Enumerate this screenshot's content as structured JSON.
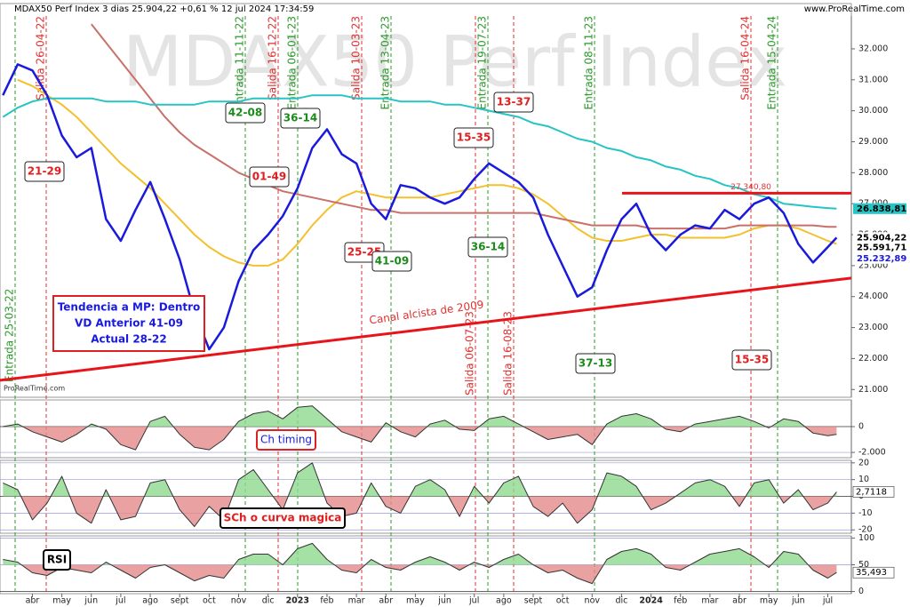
{
  "header": {
    "title": "MDAX50 Perf Index 3 dias 25.904,22 +0,61 % 12 jul 2024 17:34:59",
    "site": "www.ProRealTime.com",
    "watermark": "MDAX50 Perf Index",
    "credit": "ProRealTime.com"
  },
  "chart_data": [
    {
      "type": "line",
      "x": [
        -1,
        -0.5,
        0,
        0.5,
        1,
        1.5,
        2,
        2.5,
        3,
        3.5,
        4,
        4.5,
        5,
        5.5,
        6,
        6.5,
        7,
        7.5,
        8,
        8.5,
        9,
        9.5,
        10,
        10.5,
        11,
        11.5,
        12,
        12.5,
        13,
        13.5,
        14,
        14.5,
        15,
        15.5,
        16,
        16.5,
        17,
        17.5,
        18,
        18.5,
        19,
        19.5,
        20,
        20.5,
        21,
        21.5,
        22,
        22.5,
        23,
        23.5,
        24,
        24.5,
        25,
        25.5,
        26,
        26.5,
        27,
        27.3
      ],
      "xlim": [
        -1.1,
        27.8
      ],
      "ylim": [
        20750,
        33060
      ],
      "yticks": [
        {
          "value": 21000,
          "label": "21.000"
        },
        {
          "value": 22000,
          "label": "22.000"
        },
        {
          "value": 23000,
          "label": "23.000"
        },
        {
          "value": 24000,
          "label": "24.000"
        },
        {
          "value": 25000,
          "label": "25.000"
        },
        {
          "value": 26000,
          "label": "26.000"
        },
        {
          "value": 27000,
          "label": "27.000"
        },
        {
          "value": 28000,
          "label": "28.000"
        },
        {
          "value": 29000,
          "label": "29.000"
        },
        {
          "value": 30000,
          "label": "30.000"
        },
        {
          "value": 31000,
          "label": "31.000"
        },
        {
          "value": 32000,
          "label": "32.000"
        }
      ],
      "series": [
        {
          "color": "#f2c12e",
          "values": [
            null,
            31000,
            30800,
            30500,
            30200,
            29800,
            29300,
            28800,
            28300,
            27900,
            27500,
            27000,
            26500,
            26000,
            25600,
            25300,
            25100,
            25000,
            25000,
            25200,
            25700,
            26300,
            26800,
            27200,
            27400,
            27300,
            27200,
            27200,
            27200,
            27200,
            27300,
            27400,
            27500,
            27600,
            27600,
            27500,
            27300,
            27000,
            26600,
            26200,
            25900,
            25800,
            25800,
            25900,
            26000,
            26000,
            25900,
            25900,
            25900,
            25900,
            26000,
            26200,
            26300,
            26300,
            26200,
            26000,
            25800,
            25700
          ]
        },
        {
          "color": "#c9706a",
          "values": [
            null,
            null,
            null,
            null,
            null,
            null,
            32800,
            32200,
            31600,
            31000,
            30400,
            29800,
            29300,
            28900,
            28600,
            28300,
            28000,
            27800,
            27600,
            27400,
            27300,
            27200,
            27100,
            27000,
            26900,
            26800,
            26800,
            26700,
            26700,
            26700,
            26700,
            26700,
            26700,
            26700,
            26700,
            26700,
            26700,
            26600,
            26500,
            26400,
            26300,
            26300,
            26300,
            26300,
            26200,
            26200,
            26200,
            26200,
            26200,
            26200,
            26300,
            26300,
            26300,
            26300,
            26300,
            26300,
            26250,
            26250
          ]
        },
        {
          "color": "#26c4c4",
          "values": [
            29800,
            30100,
            30300,
            30400,
            30400,
            30400,
            30400,
            30300,
            30300,
            30300,
            30200,
            30200,
            30200,
            30200,
            30300,
            30300,
            30300,
            30400,
            30400,
            30400,
            30400,
            30500,
            30500,
            30500,
            30400,
            30400,
            30400,
            30300,
            30300,
            30300,
            30200,
            30200,
            30100,
            30000,
            29900,
            29800,
            29600,
            29500,
            29300,
            29100,
            29000,
            28800,
            28700,
            28500,
            28400,
            28200,
            28100,
            27900,
            27800,
            27600,
            27500,
            27300,
            27200,
            27000,
            26950,
            26900,
            26860,
            26839
          ]
        },
        {
          "color": "#1a1adc",
          "values": [
            30500,
            31500,
            31300,
            30500,
            29200,
            28500,
            28800,
            26500,
            25800,
            26800,
            27700,
            26500,
            25200,
            23500,
            22300,
            23000,
            24500,
            25500,
            26000,
            26600,
            27500,
            28800,
            29400,
            28600,
            28300,
            27000,
            26500,
            27600,
            27500,
            27200,
            27000,
            27200,
            27800,
            28300,
            28000,
            27700,
            27200,
            26000,
            25000,
            24000,
            24300,
            25500,
            26500,
            27000,
            26000,
            25500,
            26000,
            26300,
            26200,
            26800,
            26500,
            27000,
            27200,
            26700,
            25700,
            25100,
            25600,
            25904
          ]
        }
      ],
      "support": {
        "color": "#e8141a",
        "values": [
          21300,
          24600
        ]
      },
      "resistance": {
        "color": "#e8141a",
        "value": 27340.8,
        "label": "27.340,80"
      },
      "price_labels": [
        {
          "value": 26838.81,
          "label": "26.838,81"
        },
        {
          "value": 25904.22,
          "label": "25.904,22"
        },
        {
          "value": 25591.71,
          "label": "25.591,71"
        },
        {
          "value": 25232.89,
          "label": "25.232,89"
        }
      ],
      "signals": [
        "Entrada 25-03-22",
        "Salida 26-04-22",
        "Entrada 11-11-22",
        "Salida 16-12-22",
        "Entrada 06-01-23",
        "Salida 10-03-23",
        "Entrada 13-04-23",
        "Salida 06-07-23",
        "Entrada 19-07-23",
        "Salida 16-08-23",
        "Entrada 08-11-23",
        "Salida 16-04-24",
        "Entrada 15-04-24"
      ],
      "boxes": [
        "21-29",
        "42-08",
        "36-14",
        "01-49",
        "25-25",
        "41-09",
        "15-35",
        "13-37",
        "36-14",
        "37-13",
        "15-35"
      ],
      "channel_label": "Canal alcista de 2009",
      "trend_note": [
        "Tendencia a MP: Dentro",
        "VD Anterior 41-09",
        "Actual 28-22"
      ]
    },
    {
      "type": "area",
      "label": "Ch timing",
      "values": [
        0,
        200,
        -400,
        -800,
        -1200,
        -600,
        200,
        -200,
        -1400,
        -1800,
        400,
        800,
        -600,
        -1600,
        -1800,
        -1000,
        400,
        1000,
        1200,
        600,
        1500,
        1600,
        600,
        -400,
        -800,
        -1200,
        300,
        -400,
        -800,
        200,
        500,
        -200,
        -300,
        600,
        800,
        200,
        -400,
        -1000,
        -800,
        -600,
        -1400,
        200,
        800,
        1000,
        600,
        -200,
        -400,
        200,
        400,
        600,
        800,
        400,
        -100,
        600,
        400,
        -500,
        -700,
        -600
      ],
      "ylim": [
        -2410,
        2070
      ],
      "yticks": [
        0,
        {
          "value": -2000,
          "label": "-2.000"
        }
      ]
    },
    {
      "type": "area",
      "label": "SCh o curva magica",
      "values": [
        8,
        4,
        -14,
        -4,
        12,
        -10,
        -16,
        4,
        -14,
        -12,
        8,
        10,
        -8,
        -18,
        -6,
        -14,
        10,
        16,
        4,
        -8,
        14,
        20,
        -4,
        -12,
        -10,
        8,
        -6,
        -10,
        6,
        10,
        4,
        -12,
        6,
        -4,
        8,
        12,
        -6,
        -12,
        -4,
        -16,
        -8,
        14,
        12,
        6,
        -8,
        -4,
        2,
        8,
        10,
        6,
        -6,
        8,
        10,
        -4,
        4,
        -8,
        -4,
        2.7118
      ],
      "ylim": [
        -22,
        21.5
      ],
      "yticks": [
        20,
        10,
        0,
        -10,
        -20
      ],
      "last_value": {
        "value": 2.7118,
        "label": "2,7118"
      }
    },
    {
      "type": "area",
      "label": "RSI",
      "baseline": 50,
      "values": [
        60,
        55,
        35,
        30,
        45,
        40,
        35,
        55,
        40,
        25,
        45,
        50,
        35,
        20,
        30,
        25,
        60,
        70,
        70,
        50,
        80,
        90,
        60,
        40,
        35,
        60,
        45,
        40,
        55,
        65,
        55,
        40,
        55,
        45,
        60,
        70,
        50,
        35,
        40,
        25,
        15,
        60,
        75,
        80,
        70,
        45,
        40,
        55,
        70,
        75,
        80,
        65,
        45,
        75,
        70,
        40,
        25,
        35.493
      ],
      "ylim": [
        -4,
        104
      ],
      "yticks": [
        100,
        50,
        0
      ],
      "last_value": {
        "value": 35.493,
        "label": "35,493"
      },
      "xticks": [
        {
          "value": 0,
          "label": "abr"
        },
        {
          "value": 1,
          "label": "may"
        },
        {
          "value": 2,
          "label": "jun"
        },
        {
          "value": 3,
          "label": "jul"
        },
        {
          "value": 4,
          "label": "ago"
        },
        {
          "value": 5,
          "label": "sept"
        },
        {
          "value": 6,
          "label": "oct"
        },
        {
          "value": 7,
          "label": "nov"
        },
        {
          "value": 8,
          "label": "dic"
        },
        {
          "value": 9,
          "label": "2023"
        },
        {
          "value": 10,
          "label": "feb"
        },
        {
          "value": 11,
          "label": "mar"
        },
        {
          "value": 12,
          "label": "abr"
        },
        {
          "value": 13,
          "label": "may"
        },
        {
          "value": 14,
          "label": "jun"
        },
        {
          "value": 15,
          "label": "jul"
        },
        {
          "value": 16,
          "label": "ago"
        },
        {
          "value": 17,
          "label": "sept"
        },
        {
          "value": 18,
          "label": "oct"
        },
        {
          "value": 19,
          "label": "nov"
        },
        {
          "value": 20,
          "label": "dic"
        },
        {
          "value": 21,
          "label": "2024"
        },
        {
          "value": 22,
          "label": "feb"
        },
        {
          "value": 23,
          "label": "mar"
        },
        {
          "value": 24,
          "label": "abr"
        },
        {
          "value": 25,
          "label": "may"
        },
        {
          "value": 26,
          "label": "jun"
        },
        {
          "value": 27,
          "label": "jul"
        }
      ]
    }
  ]
}
